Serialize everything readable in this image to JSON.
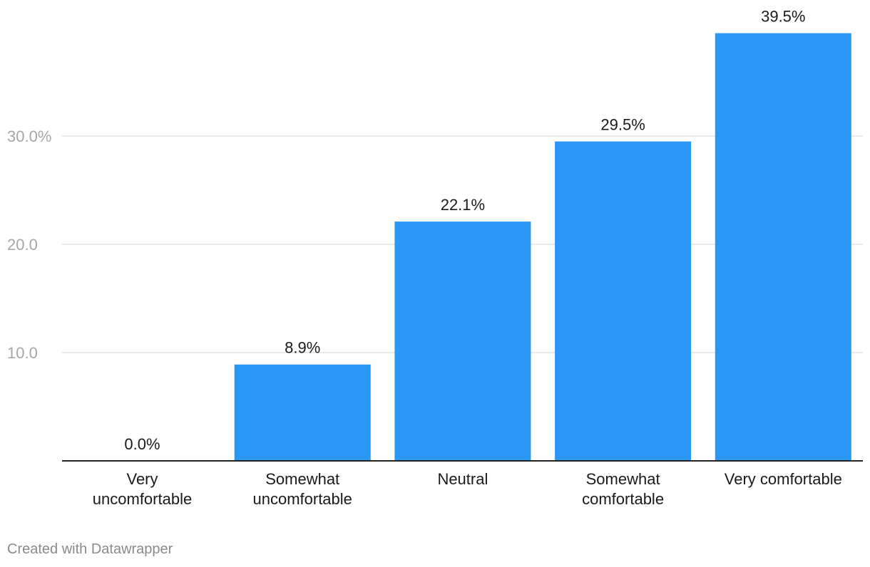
{
  "chart_data": {
    "type": "bar",
    "categories": [
      [
        "Very",
        "uncomfortable"
      ],
      [
        "Somewhat",
        "uncomfortable"
      ],
      [
        "Neutral"
      ],
      [
        "Somewhat",
        "comfortable"
      ],
      [
        "Very comfortable"
      ]
    ],
    "values": [
      0.0,
      8.9,
      22.1,
      29.5,
      39.5
    ],
    "value_labels": [
      "0.0%",
      "8.9%",
      "22.1%",
      "29.5%",
      "39.5%"
    ],
    "yticks": [
      {
        "value": 10,
        "label": "10.0"
      },
      {
        "value": 20,
        "label": "20.0"
      },
      {
        "value": 30,
        "label": "30.0%"
      }
    ],
    "ylim": [
      0,
      39.5
    ],
    "grid": true,
    "bar_color": "#2b97f5",
    "axis_color": "#222222",
    "grid_color": "#e2e2e2",
    "tick_color": "#a6a6a6",
    "label_color": "#1a1a1a"
  },
  "footer": {
    "credit": "Created with Datawrapper"
  }
}
